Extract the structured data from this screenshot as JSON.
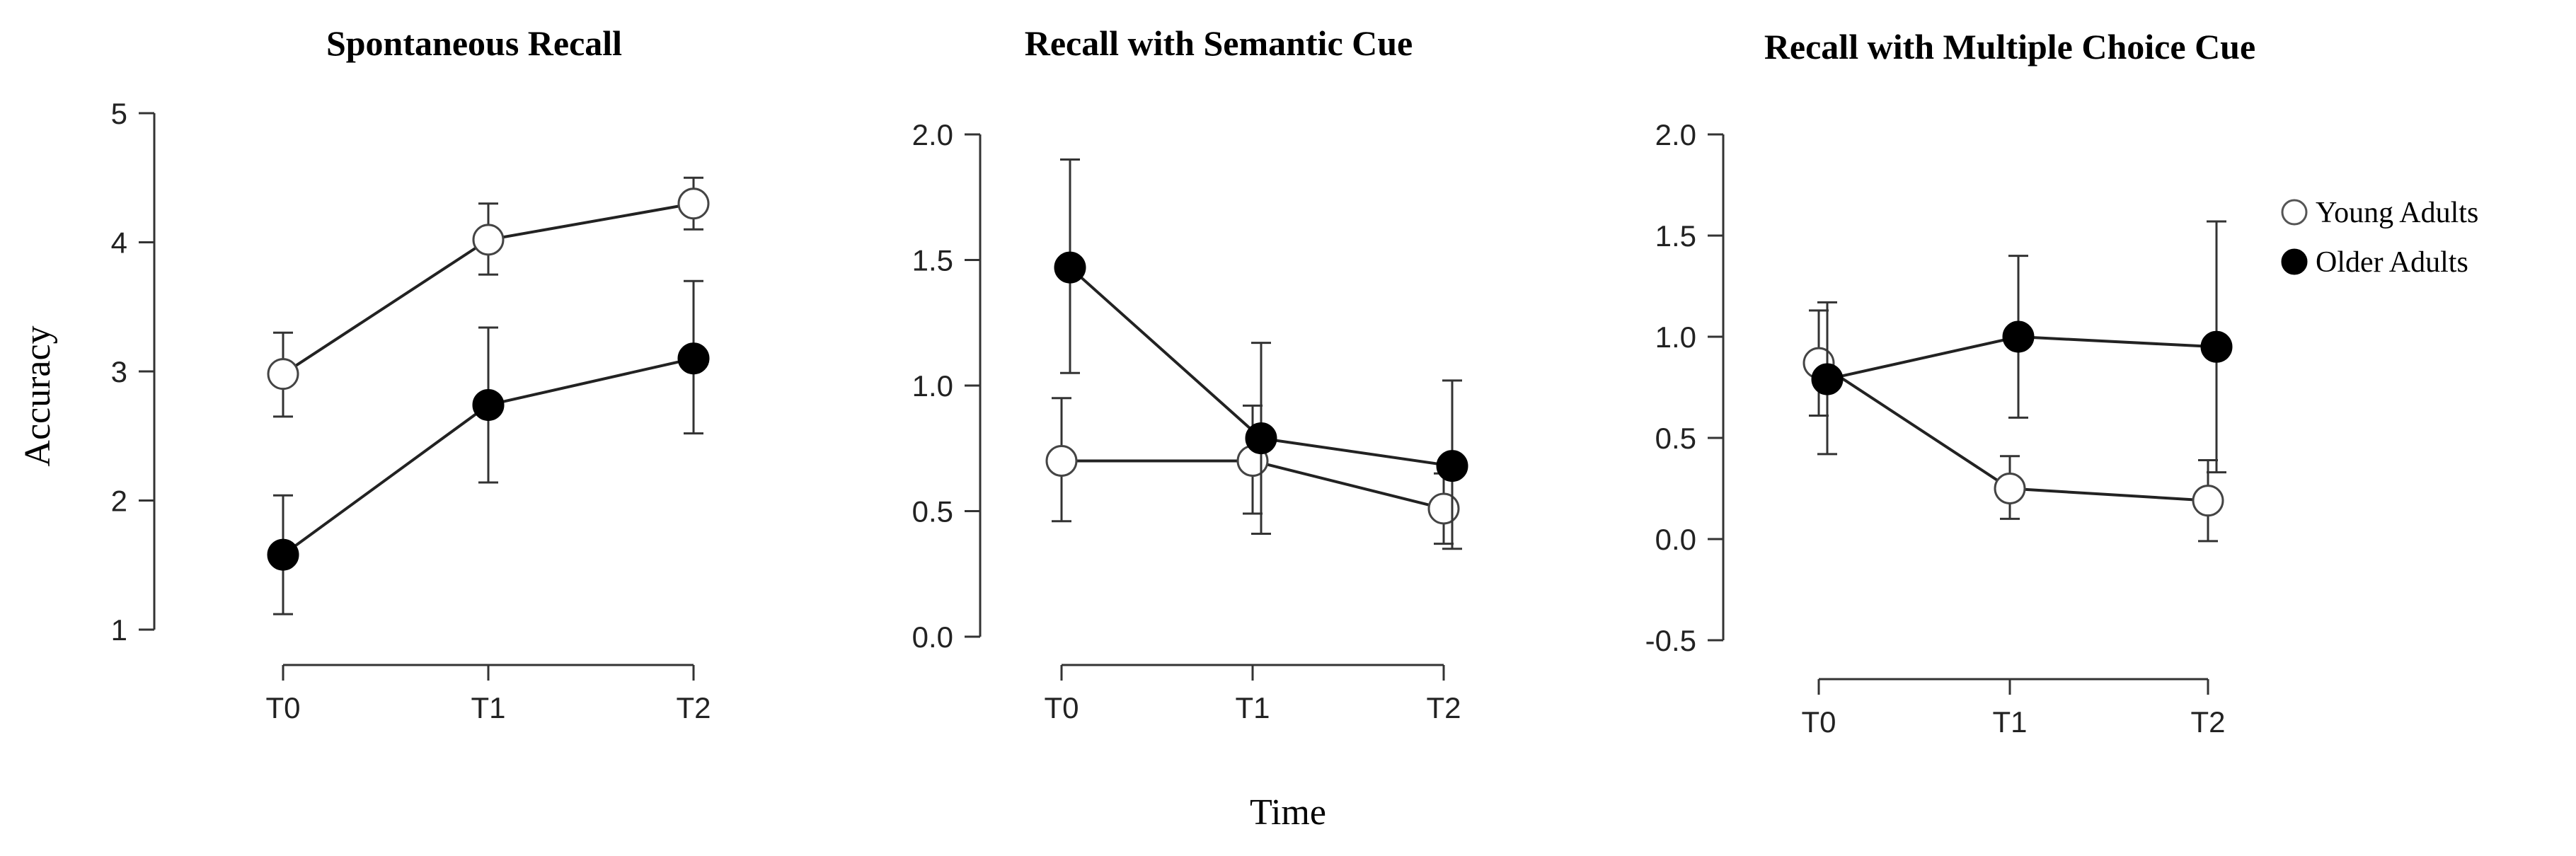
{
  "chart_data": [
    {
      "type": "line",
      "title": "Spontaneous Recall",
      "xlabel": "Time",
      "ylabel": "Accuracy",
      "categories": [
        "T0",
        "T1",
        "T2"
      ],
      "ylim": [
        1,
        5
      ],
      "yticks": [
        1,
        2,
        3,
        4,
        5
      ],
      "ytick_labels": [
        "1",
        "2",
        "3",
        "4",
        "5"
      ],
      "series": [
        {
          "name": "Young Adults",
          "marker": "open",
          "values": [
            2.98,
            4.02,
            4.3
          ],
          "err_low": [
            2.65,
            3.75,
            4.1
          ],
          "err_high": [
            3.3,
            4.3,
            4.5
          ]
        },
        {
          "name": "Older Adults",
          "marker": "filled",
          "values": [
            1.58,
            2.74,
            3.1
          ],
          "err_low": [
            1.12,
            2.14,
            2.52
          ],
          "err_high": [
            2.04,
            3.34,
            3.7
          ]
        }
      ]
    },
    {
      "type": "line",
      "title": "Recall with Semantic Cue",
      "categories": [
        "T0",
        "T1",
        "T2"
      ],
      "ylim": [
        0,
        2
      ],
      "yticks": [
        0,
        0.5,
        1,
        1.5,
        2
      ],
      "ytick_labels": [
        "0.0",
        "0.5",
        "1.0",
        "1.5",
        "2.0"
      ],
      "series": [
        {
          "name": "Young Adults",
          "marker": "open",
          "values": [
            0.7,
            0.7,
            0.51
          ],
          "err_low": [
            0.46,
            0.49,
            0.37
          ],
          "err_high": [
            0.95,
            0.92,
            0.65
          ]
        },
        {
          "name": "Older Adults",
          "marker": "filled",
          "values": [
            1.47,
            0.79,
            0.68
          ],
          "err_low": [
            1.05,
            0.41,
            0.35
          ],
          "err_high": [
            1.9,
            1.17,
            1.02
          ]
        }
      ]
    },
    {
      "type": "line",
      "title": "Recall with Multiple Choice Cue",
      "categories": [
        "T0",
        "T1",
        "T2"
      ],
      "ylim": [
        -0.5,
        2
      ],
      "yticks": [
        -0.5,
        0,
        0.5,
        1,
        1.5,
        2
      ],
      "ytick_labels": [
        "-0.5",
        "0.0",
        "0.5",
        "1.0",
        "1.5",
        "2.0"
      ],
      "series": [
        {
          "name": "Young Adults",
          "marker": "open",
          "values": [
            0.87,
            0.25,
            0.19
          ],
          "err_low": [
            0.61,
            0.1,
            -0.01
          ],
          "err_high": [
            1.13,
            0.41,
            0.39
          ]
        },
        {
          "name": "Older Adults",
          "marker": "filled",
          "values": [
            0.79,
            1.0,
            0.95
          ],
          "err_low": [
            0.42,
            0.6,
            0.33
          ],
          "err_high": [
            1.17,
            1.4,
            1.57
          ]
        }
      ]
    }
  ],
  "axis_titles": {
    "x": "Time",
    "y": "Accuracy"
  },
  "legend": {
    "position": "right",
    "items": [
      {
        "label": "Young Adults",
        "marker": "open"
      },
      {
        "label": "Older Adults",
        "marker": "filled"
      }
    ]
  }
}
